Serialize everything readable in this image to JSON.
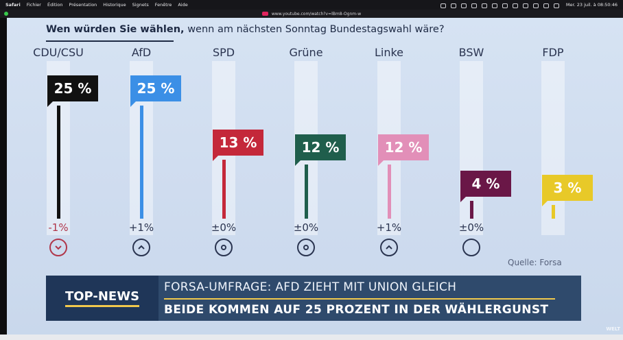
{
  "menubar": {
    "app": "Safari",
    "items": [
      "Fichier",
      "Édition",
      "Présentation",
      "Historique",
      "Signets",
      "Fenêtre",
      "Aide"
    ],
    "clock": "Mer. 23 juil. à 08:50:46"
  },
  "addressbar": {
    "url": "www.youtube.com/watch?v=lBm8-Ognm-w"
  },
  "video": {
    "headline_bold": "Wen würden Sie wählen,",
    "headline_rest": "wenn am nächsten Sonntag Bundestagswahl wäre?",
    "source": "Quelle: Forsa",
    "ticker": {
      "label": "TOP-NEWS",
      "line1": "FORSA-UMFRAGE: AFD ZIEHT MIT UNION GLEICH",
      "line2": "BEIDE KOMMEN AUF 25 PROZENT IN DER WÄHLERGUNST"
    },
    "logo": "WELT"
  },
  "chart_data": {
    "type": "bar",
    "categories": [
      "CDU/CSU",
      "AfD",
      "SPD",
      "Grüne",
      "Linke",
      "BSW",
      "FDP"
    ],
    "values": [
      25,
      25,
      13,
      12,
      12,
      4,
      3
    ],
    "value_labels": [
      "25 %",
      "25 %",
      "13 %",
      "12 %",
      "12 %",
      "4 %",
      "3 %"
    ],
    "changes": [
      "-1%",
      "+1%",
      "±0%",
      "±0%",
      "+1%",
      "±0%",
      ""
    ],
    "trend": [
      "down",
      "up",
      "flat",
      "flat",
      "up",
      "none",
      ""
    ],
    "colors": [
      "#111111",
      "#3b8fe6",
      "#c4283a",
      "#1f5e4c",
      "#e28fb8",
      "#6a1747",
      "#e8c928"
    ],
    "ylim": [
      0,
      30
    ],
    "title": "Wen würden Sie wählen, wenn am nächsten Sonntag Bundestagswahl wäre?"
  }
}
